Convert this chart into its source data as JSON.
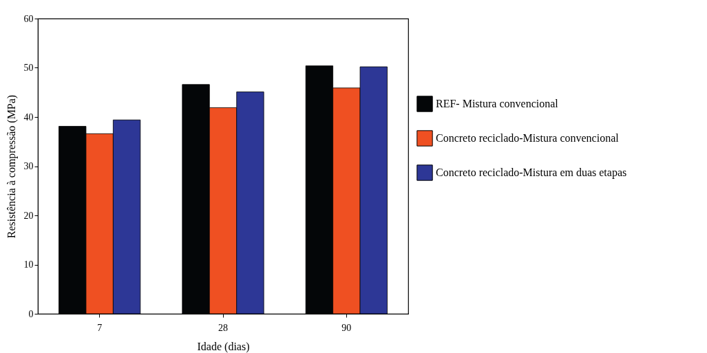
{
  "chart_data": {
    "type": "bar",
    "xlabel": "Idade (dias)",
    "ylabel": "Resistência à compressão (MPa)",
    "categories": [
      "7",
      "28",
      "90"
    ],
    "series": [
      {
        "name": "REF- Mistura convencional",
        "color": "#040608",
        "values": [
          38.1,
          46.6,
          50.4
        ]
      },
      {
        "name": "Concreto reciclado-Mistura convencional",
        "color": "#ef5022",
        "values": [
          36.6,
          41.9,
          45.9
        ]
      },
      {
        "name": "Concreto reciclado-Mistura em duas etapas",
        "color": "#2d3796",
        "values": [
          39.4,
          45.1,
          50.2
        ]
      }
    ],
    "ylim": [
      0,
      60
    ],
    "yticks": [
      0,
      10,
      20,
      30,
      40,
      50,
      60
    ],
    "grid": false,
    "legend": "right"
  }
}
